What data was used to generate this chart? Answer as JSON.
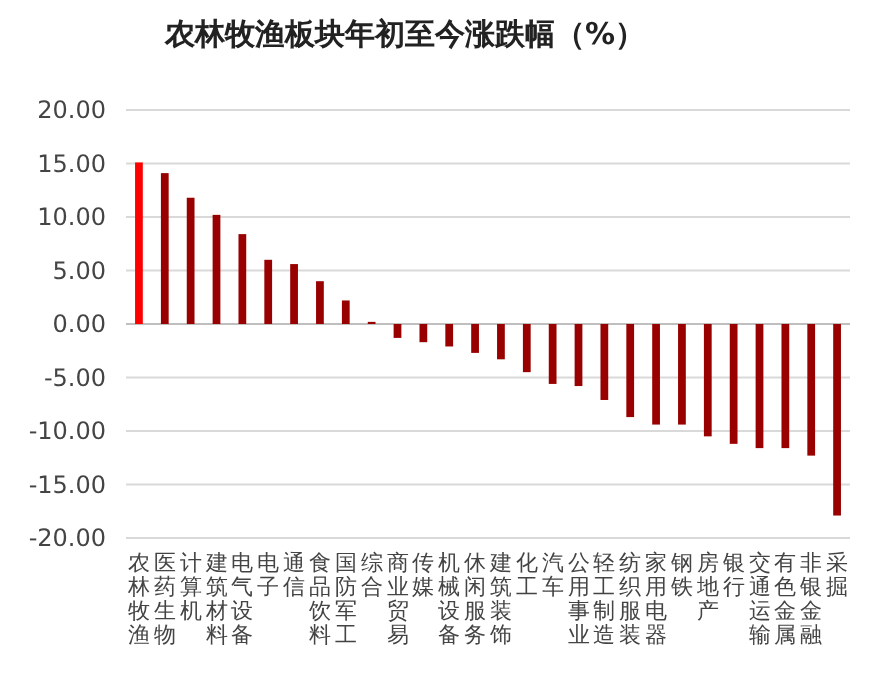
{
  "chart_data": {
    "type": "bar",
    "title": "农林牧渔板块年初至今涨跌幅（%）",
    "categories": [
      "农林牧渔",
      "医药生物",
      "计算机",
      "建筑材料",
      "电气设备",
      "电子",
      "通信",
      "食品饮料",
      "国防军工",
      "综合",
      "商业贸易",
      "传媒",
      "机械设备",
      "休闲服务",
      "建筑装饰",
      "化工",
      "汽车",
      "公用事业",
      "轻工制造",
      "纺织服装",
      "家用电器",
      "钢铁",
      "房地产",
      "银行",
      "交通运输",
      "有色金属",
      "非银金融",
      "采掘"
    ],
    "values": [
      15.1,
      14.1,
      11.8,
      10.2,
      8.4,
      6.0,
      5.6,
      4.0,
      2.2,
      0.2,
      -1.3,
      -1.7,
      -2.1,
      -2.7,
      -3.3,
      -4.5,
      -5.6,
      -5.8,
      -7.1,
      -8.7,
      -9.4,
      -9.4,
      -10.5,
      -11.2,
      -11.6,
      -11.6,
      -12.3,
      -17.9
    ],
    "colors": [
      "#ff0000",
      "#990000",
      "#990000",
      "#990000",
      "#990000",
      "#990000",
      "#990000",
      "#990000",
      "#990000",
      "#990000",
      "#990000",
      "#990000",
      "#990000",
      "#990000",
      "#990000",
      "#990000",
      "#990000",
      "#990000",
      "#990000",
      "#990000",
      "#990000",
      "#990000",
      "#990000",
      "#990000",
      "#990000",
      "#990000",
      "#990000",
      "#990000"
    ],
    "ylim": [
      -20,
      20
    ],
    "yticks": [
      {
        "value": -20,
        "label": "-20.00"
      },
      {
        "value": -15,
        "label": "-15.00"
      },
      {
        "value": -10,
        "label": "-10.00"
      },
      {
        "value": -5,
        "label": "-5.00"
      },
      {
        "value": 0,
        "label": "0.00"
      },
      {
        "value": 5,
        "label": "5.00"
      },
      {
        "value": 10,
        "label": "10.00"
      },
      {
        "value": 15,
        "label": "15.00"
      },
      {
        "value": 20,
        "label": "20.00"
      }
    ],
    "grid": "y"
  }
}
